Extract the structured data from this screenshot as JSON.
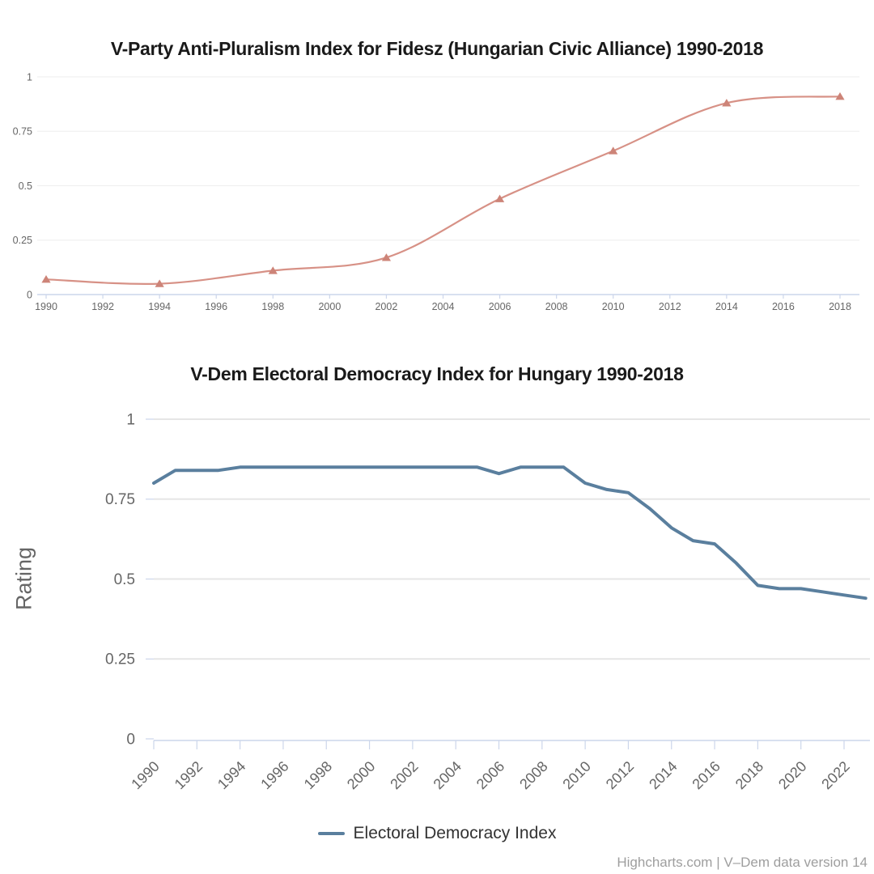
{
  "chart_data": [
    {
      "id": "anti-pluralism-index",
      "type": "line",
      "title": "V-Party Anti-Pluralism Index for Fidesz (Hungarian Civic Alliance) 1990-2018",
      "xlabel": "",
      "ylabel": "",
      "x": [
        1990,
        1994,
        1998,
        2002,
        2006,
        2010,
        2014,
        2018
      ],
      "values": [
        0.07,
        0.05,
        0.11,
        0.17,
        0.44,
        0.66,
        0.88,
        0.91
      ],
      "xticks": [
        1990,
        1992,
        1994,
        1996,
        1998,
        2000,
        2002,
        2004,
        2006,
        2008,
        2010,
        2012,
        2014,
        2016,
        2018
      ],
      "yticks": [
        0,
        0.25,
        0.5,
        0.75,
        1
      ],
      "ylim": [
        0,
        1
      ],
      "grid": true,
      "legend_position": "none",
      "line_color": "#d79186",
      "marker_color": "#cd8478",
      "marker": "triangle-up",
      "smooth": true,
      "grid_color": "#eeeeee",
      "axis_color": "#ccd6eb",
      "label_color": "#666666"
    },
    {
      "id": "electoral-democracy-index",
      "type": "line",
      "title": "V-Dem Electoral Democracy Index for Hungary 1990-2018",
      "xlabel": "",
      "ylabel": "Rating",
      "legend": "Electoral Democracy Index",
      "x": [
        1990,
        1991,
        1992,
        1993,
        1994,
        1995,
        1996,
        1997,
        1998,
        1999,
        2000,
        2001,
        2002,
        2003,
        2004,
        2005,
        2006,
        2007,
        2008,
        2009,
        2010,
        2011,
        2012,
        2013,
        2014,
        2015,
        2016,
        2017,
        2018,
        2019,
        2020,
        2021,
        2022,
        2023
      ],
      "values": [
        0.8,
        0.84,
        0.84,
        0.84,
        0.85,
        0.85,
        0.85,
        0.85,
        0.85,
        0.85,
        0.85,
        0.85,
        0.85,
        0.85,
        0.85,
        0.85,
        0.83,
        0.85,
        0.85,
        0.85,
        0.8,
        0.78,
        0.77,
        0.72,
        0.66,
        0.62,
        0.61,
        0.55,
        0.48,
        0.47,
        0.47,
        0.46,
        0.45,
        0.44
      ],
      "xticks": [
        1990,
        1992,
        1994,
        1996,
        1998,
        2000,
        2002,
        2004,
        2006,
        2008,
        2010,
        2012,
        2014,
        2016,
        2018,
        2020,
        2022
      ],
      "yticks": [
        0,
        0.25,
        0.5,
        0.75,
        1
      ],
      "ylim": [
        0,
        1
      ],
      "grid": true,
      "legend_position": "bottom",
      "line_color": "#5a7f9e",
      "marker": "none",
      "smooth": false,
      "grid_color": "#e6e6e6",
      "axis_color": "#ccd6eb",
      "label_color": "#666666"
    }
  ],
  "footer": {
    "credits": "Highcharts.com | V–Dem data version 14"
  }
}
